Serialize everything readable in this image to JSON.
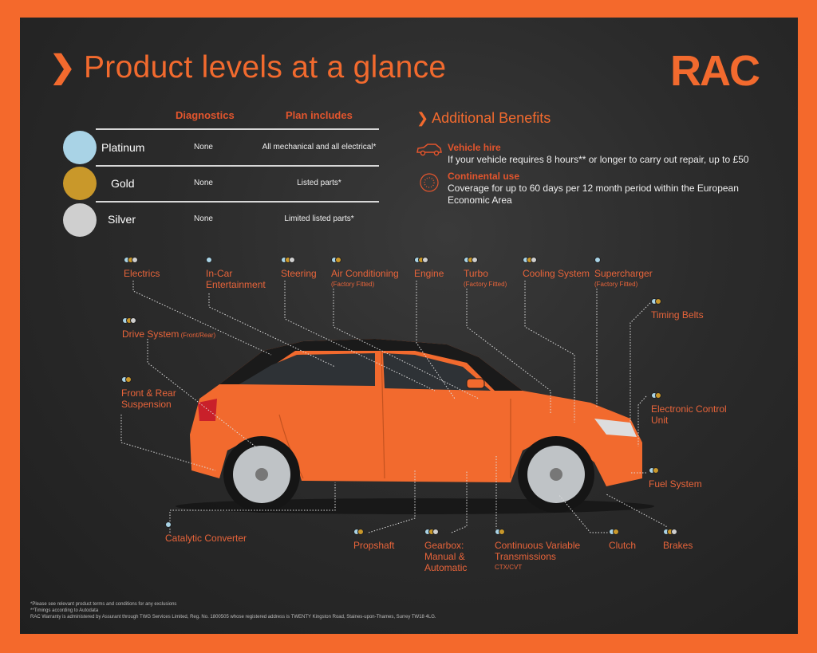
{
  "title": "Product levels at a glance",
  "title_chevron": "❯",
  "logo": "RAC",
  "colors": {
    "accent": "#f26a2e",
    "platinum": "#a9d3e6",
    "gold": "#c9982a",
    "silver": "#cfcfcf",
    "background": "#2b2b2b"
  },
  "table": {
    "headers": [
      "Diagnostics",
      "Plan includes"
    ],
    "rows": [
      {
        "tier": "Platinum",
        "diagnostics": "None",
        "plan": "All mechanical and all electrical*"
      },
      {
        "tier": "Gold",
        "diagnostics": "None",
        "plan": "Listed parts*"
      },
      {
        "tier": "Silver",
        "diagnostics": "None",
        "plan": "Limited listed parts*"
      }
    ]
  },
  "benefits": {
    "heading": "Additional Benefits",
    "items": [
      {
        "icon": "car-icon",
        "title": "Vehicle hire",
        "text": "If your vehicle requires 8 hours** or longer to carry out repair, up to £50"
      },
      {
        "icon": "eu-stars-icon",
        "title": "Continental use",
        "text": "Coverage for up to 60 days per 12 month period within the European Economic Area"
      }
    ]
  },
  "parts": [
    {
      "name": "Electrics",
      "tiers": [
        "platinum",
        "gold",
        "silver"
      ]
    },
    {
      "name": "In-Car Entertainment",
      "tiers": [
        "platinum"
      ]
    },
    {
      "name": "Steering",
      "tiers": [
        "platinum",
        "gold",
        "silver"
      ]
    },
    {
      "name": "Air Conditioning",
      "note": "(Factory Fitted)",
      "tiers": [
        "platinum",
        "gold"
      ]
    },
    {
      "name": "Engine",
      "tiers": [
        "platinum",
        "gold",
        "silver"
      ]
    },
    {
      "name": "Turbo",
      "note": "(Factory Fitted)",
      "tiers": [
        "platinum",
        "gold",
        "silver"
      ]
    },
    {
      "name": "Cooling System",
      "tiers": [
        "platinum",
        "gold",
        "silver"
      ]
    },
    {
      "name": "Supercharger",
      "note": "(Factory Fitted)",
      "tiers": [
        "platinum"
      ]
    },
    {
      "name": "Timing Belts",
      "tiers": [
        "platinum",
        "gold"
      ]
    },
    {
      "name": "Drive System",
      "note": "(Front/Rear)",
      "tiers": [
        "platinum",
        "gold",
        "silver"
      ]
    },
    {
      "name": "Front & Rear Suspension",
      "tiers": [
        "platinum",
        "gold"
      ]
    },
    {
      "name": "Electronic Control Unit",
      "tiers": [
        "platinum",
        "gold"
      ]
    },
    {
      "name": "Fuel System",
      "tiers": [
        "platinum",
        "gold"
      ]
    },
    {
      "name": "Catalytic Converter",
      "tiers": [
        "platinum"
      ]
    },
    {
      "name": "Propshaft",
      "tiers": [
        "platinum",
        "gold"
      ]
    },
    {
      "name": "Gearbox: Manual & Automatic",
      "tiers": [
        "platinum",
        "gold",
        "silver"
      ]
    },
    {
      "name": "Continuous Variable Transmissions",
      "note": "CTX/CVT",
      "tiers": [
        "platinum",
        "gold"
      ]
    },
    {
      "name": "Clutch",
      "tiers": [
        "platinum",
        "gold"
      ]
    },
    {
      "name": "Brakes",
      "tiers": [
        "platinum",
        "gold",
        "silver"
      ]
    }
  ],
  "footnotes": [
    "*Please see relevant product terms and conditions for any exclusions",
    "**Timings according to Autodata",
    "RAC Warranty is administered by Assurant through TWG Services Limited, Reg. No. 1800505 whose registered address is TWENTY Kingston Road, Staines-upon-Thames, Surrey TW18 4LG."
  ]
}
